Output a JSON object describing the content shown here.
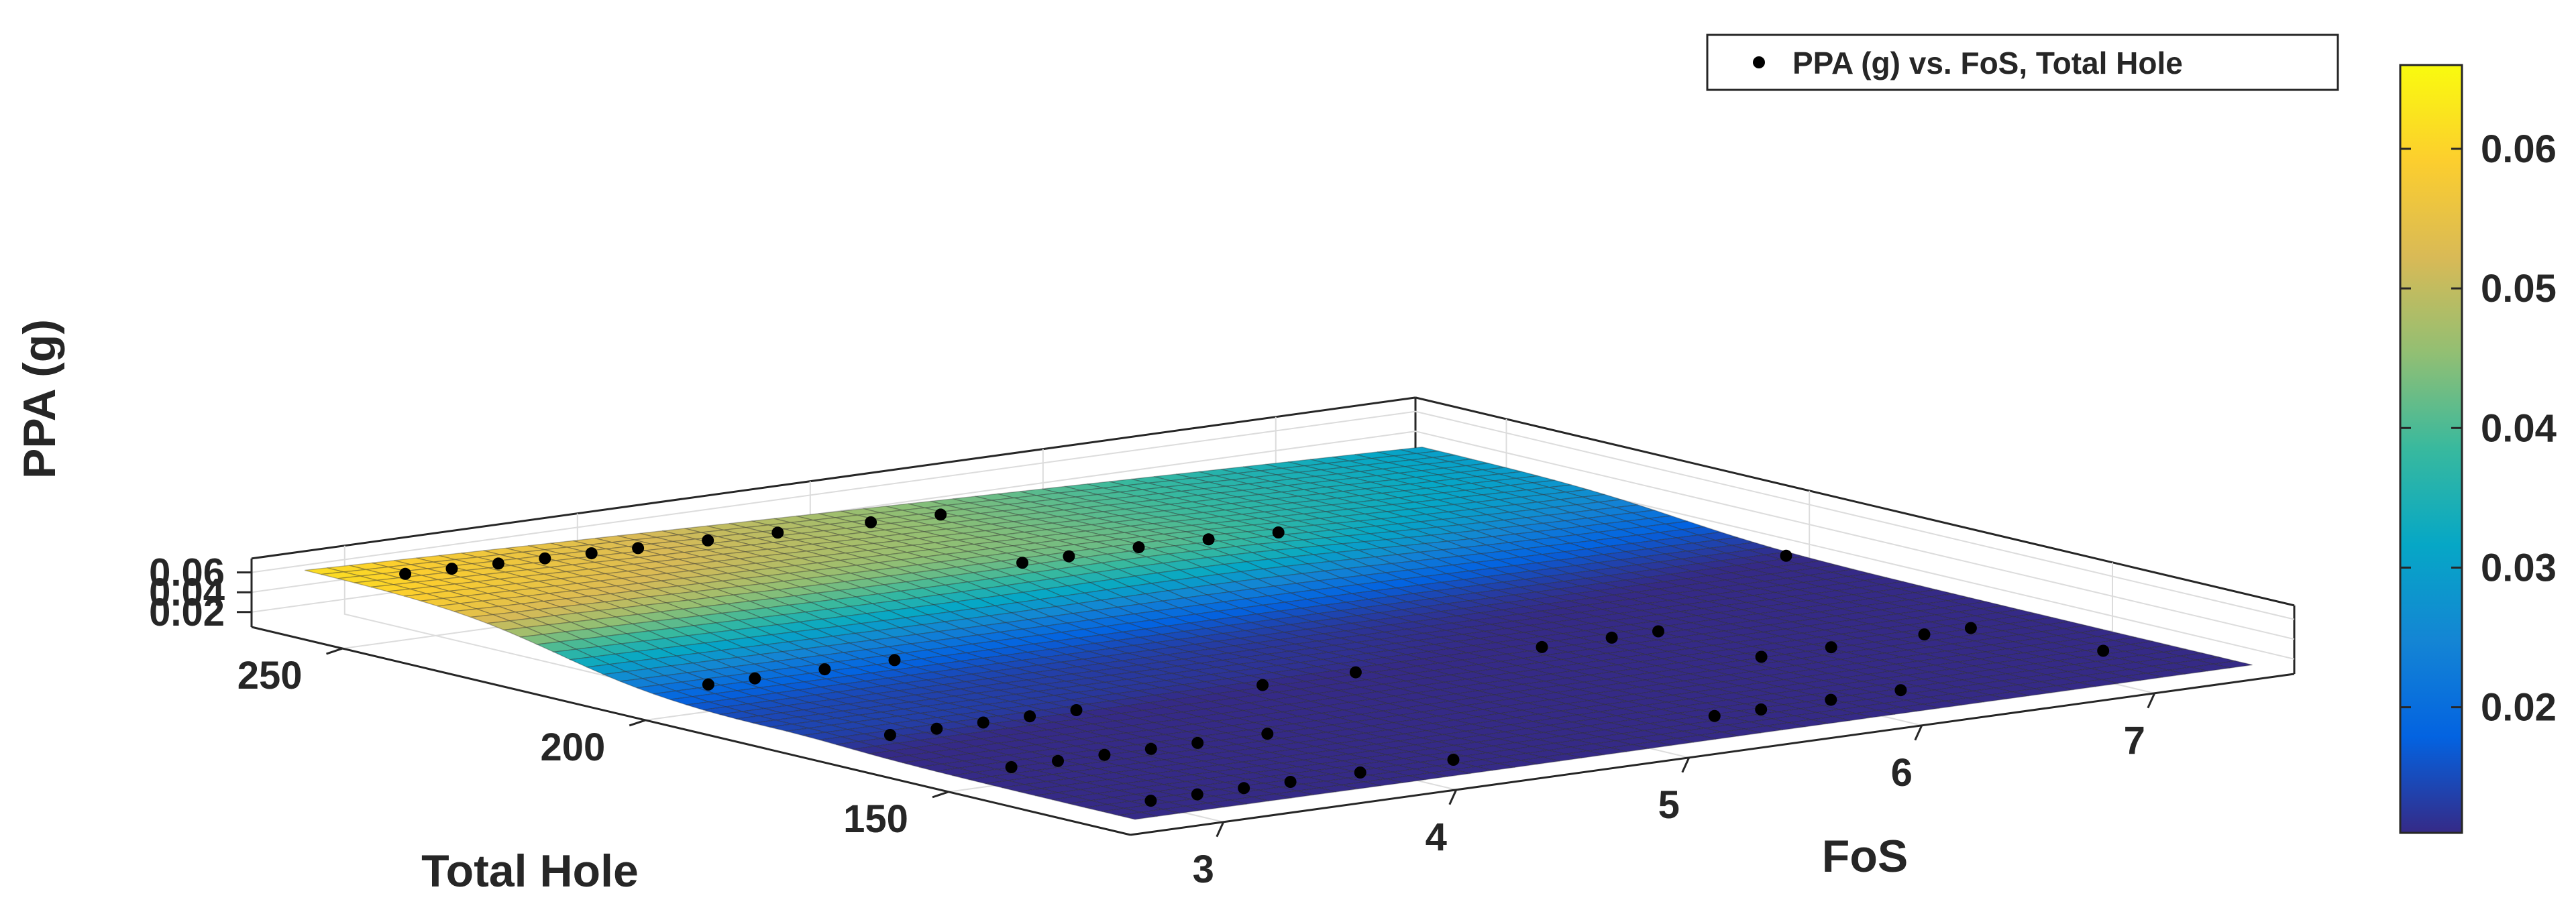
{
  "chart_data": {
    "type": "surface",
    "title": "",
    "xlabel": "FoS",
    "ylabel": "Total Hole",
    "zlabel": "PPA (g)",
    "xlim": [
      2.6,
      7.6
    ],
    "ylim": [
      120,
      265
    ],
    "zlim": [
      0.005,
      0.07
    ],
    "x_ticks": [
      3,
      4,
      5,
      6,
      7
    ],
    "y_ticks": [
      150,
      200,
      250
    ],
    "z_ticks": [
      0.02,
      0.04,
      0.06
    ],
    "x_tick_labels": [
      "3",
      "4",
      "5",
      "6",
      "7"
    ],
    "y_tick_labels": [
      "150",
      "200",
      "250"
    ],
    "z_tick_labels": [
      "0.02",
      "0.04",
      "0.06"
    ],
    "colorbar": {
      "range": [
        0.011,
        0.066
      ],
      "ticks": [
        0.02,
        0.03,
        0.04,
        0.05,
        0.06
      ],
      "tick_labels": [
        "0.02",
        "0.03",
        "0.04",
        "0.05",
        "0.06"
      ],
      "colormap": [
        "#352a87",
        "#0363e1",
        "#1485d4",
        "#06a7c6",
        "#38b99e",
        "#92bf73",
        "#d9ba56",
        "#fcce2e",
        "#f9fb0e"
      ]
    },
    "legend": {
      "label": "PPA (g) vs. FoS, Total Hole",
      "placement": "top-right",
      "marker_color": "#000000"
    },
    "grid": true,
    "box": true,
    "scatter": [
      {
        "x": 3.0,
        "y": 255,
        "z": 0.06
      },
      {
        "x": 3.2,
        "y": 255,
        "z": 0.0602
      },
      {
        "x": 3.4,
        "y": 255,
        "z": 0.0605
      },
      {
        "x": 3.6,
        "y": 255,
        "z": 0.0612
      },
      {
        "x": 3.8,
        "y": 255,
        "z": 0.0615
      },
      {
        "x": 4.0,
        "y": 255,
        "z": 0.0618
      },
      {
        "x": 4.3,
        "y": 255,
        "z": 0.0622
      },
      {
        "x": 4.6,
        "y": 255,
        "z": 0.063
      },
      {
        "x": 5.0,
        "y": 255,
        "z": 0.0645
      },
      {
        "x": 5.3,
        "y": 255,
        "z": 0.065
      },
      {
        "x": 3.0,
        "y": 205,
        "z": 0.01
      },
      {
        "x": 3.2,
        "y": 205,
        "z": 0.0102
      },
      {
        "x": 3.5,
        "y": 205,
        "z": 0.0105
      },
      {
        "x": 3.8,
        "y": 205,
        "z": 0.0108
      },
      {
        "x": 3.0,
        "y": 175,
        "z": 0.0128
      },
      {
        "x": 3.2,
        "y": 175,
        "z": 0.013
      },
      {
        "x": 3.4,
        "y": 175,
        "z": 0.0132
      },
      {
        "x": 3.6,
        "y": 175,
        "z": 0.0135
      },
      {
        "x": 3.8,
        "y": 175,
        "z": 0.014
      },
      {
        "x": 3.0,
        "y": 155,
        "z": 0.0108
      },
      {
        "x": 3.2,
        "y": 155,
        "z": 0.0112
      },
      {
        "x": 3.4,
        "y": 155,
        "z": 0.0115
      },
      {
        "x": 3.6,
        "y": 155,
        "z": 0.012
      },
      {
        "x": 3.8,
        "y": 155,
        "z": 0.0128
      },
      {
        "x": 4.1,
        "y": 155,
        "z": 0.0135
      },
      {
        "x": 3.0,
        "y": 132,
        "z": 0.01
      },
      {
        "x": 3.2,
        "y": 132,
        "z": 0.0102
      },
      {
        "x": 3.4,
        "y": 132,
        "z": 0.0104
      },
      {
        "x": 3.6,
        "y": 132,
        "z": 0.0106
      },
      {
        "x": 3.9,
        "y": 132,
        "z": 0.011
      },
      {
        "x": 4.3,
        "y": 132,
        "z": 0.0118
      },
      {
        "x": 5.0,
        "y": 230,
        "z": 0.019
      },
      {
        "x": 5.2,
        "y": 230,
        "z": 0.0192
      },
      {
        "x": 5.5,
        "y": 230,
        "z": 0.0196
      },
      {
        "x": 5.8,
        "y": 230,
        "z": 0.02
      },
      {
        "x": 6.1,
        "y": 230,
        "z": 0.0205
      },
      {
        "x": 4.6,
        "y": 175,
        "z": 0.0115
      },
      {
        "x": 5.0,
        "y": 175,
        "z": 0.0122
      },
      {
        "x": 5.8,
        "y": 175,
        "z": 0.0155
      },
      {
        "x": 6.1,
        "y": 175,
        "z": 0.016
      },
      {
        "x": 6.3,
        "y": 175,
        "z": 0.0168
      },
      {
        "x": 6.3,
        "y": 158,
        "z": 0.01
      },
      {
        "x": 6.6,
        "y": 158,
        "z": 0.0105
      },
      {
        "x": 7.0,
        "y": 158,
        "z": 0.0115
      },
      {
        "x": 7.2,
        "y": 158,
        "z": 0.012
      },
      {
        "x": 5.5,
        "y": 135,
        "z": 0.009
      },
      {
        "x": 5.7,
        "y": 135,
        "z": 0.0092
      },
      {
        "x": 6.0,
        "y": 135,
        "z": 0.0095
      },
      {
        "x": 6.3,
        "y": 135,
        "z": 0.01
      },
      {
        "x": 7.5,
        "y": 200,
        "z": 0.0145
      },
      {
        "x": 7.3,
        "y": 140,
        "z": 0.009
      }
    ]
  }
}
